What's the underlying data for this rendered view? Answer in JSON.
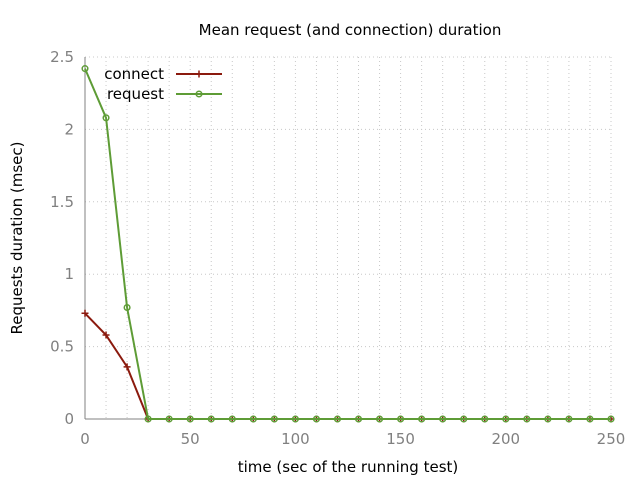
{
  "chart_data": {
    "type": "line",
    "title": "Mean request (and connection) duration",
    "xlabel": "time (sec of the running test)",
    "ylabel": "Requests duration (msec)",
    "xlim": [
      0,
      250
    ],
    "ylim": [
      0,
      2.5
    ],
    "xticks": [
      0,
      50,
      100,
      150,
      200,
      250
    ],
    "yticks": [
      0,
      0.5,
      1,
      1.5,
      2,
      2.5
    ],
    "xtick_labels": [
      "0",
      "50",
      "100",
      "150",
      "200",
      "250"
    ],
    "ytick_labels": [
      "0",
      "0.5",
      "1",
      "1.5",
      "2",
      "2.5"
    ],
    "grid": true,
    "legend_position": "top-left",
    "x": [
      0,
      10,
      20,
      30,
      40,
      50,
      60,
      70,
      80,
      90,
      100,
      110,
      120,
      130,
      140,
      150,
      160,
      170,
      180,
      190,
      200,
      210,
      220,
      230,
      240,
      250
    ],
    "series": [
      {
        "name": "connect",
        "color": "#8b1a0e",
        "marker": "plus",
        "values": [
          0.73,
          0.58,
          0.36,
          0,
          0,
          0,
          0,
          0,
          0,
          0,
          0,
          0,
          0,
          0,
          0,
          0,
          0,
          0,
          0,
          0,
          0,
          0,
          0,
          0,
          0,
          0
        ]
      },
      {
        "name": "request",
        "color": "#5e9c36",
        "marker": "circle",
        "values": [
          2.42,
          2.08,
          0.77,
          0,
          0,
          0,
          0,
          0,
          0,
          0,
          0,
          0,
          0,
          0,
          0,
          0,
          0,
          0,
          0,
          0,
          0,
          0,
          0,
          0,
          0,
          0
        ]
      }
    ]
  }
}
